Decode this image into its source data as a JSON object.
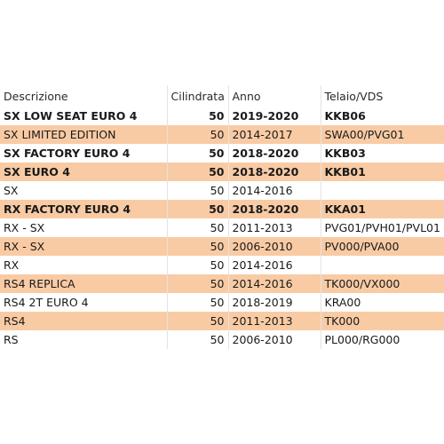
{
  "table": {
    "headers": [
      "Descrizione",
      "Cilindrata",
      "Anno",
      "Telaio/VDS"
    ],
    "rows": [
      {
        "descrizione": "SX LOW SEAT EURO 4",
        "cilindrata": "50",
        "anno": "2019-2020",
        "telaio": "KKB06",
        "bold": true,
        "shaded": false
      },
      {
        "descrizione": "SX LIMITED EDITION",
        "cilindrata": "50",
        "anno": "2014-2017",
        "telaio": "SWA00/PVG01",
        "bold": false,
        "shaded": true
      },
      {
        "descrizione": "SX FACTORY EURO 4",
        "cilindrata": "50",
        "anno": "2018-2020",
        "telaio": "KKB03",
        "bold": true,
        "shaded": false
      },
      {
        "descrizione": "SX EURO 4",
        "cilindrata": "50",
        "anno": "2018-2020",
        "telaio": "KKB01",
        "bold": true,
        "shaded": true
      },
      {
        "descrizione": "SX",
        "cilindrata": "50",
        "anno": "2014-2016",
        "telaio": "",
        "bold": false,
        "shaded": false
      },
      {
        "descrizione": "RX FACTORY EURO 4",
        "cilindrata": "50",
        "anno": "2018-2020",
        "telaio": "KKA01",
        "bold": true,
        "shaded": true
      },
      {
        "descrizione": "RX - SX",
        "cilindrata": "50",
        "anno": "2011-2013",
        "telaio": "PVG01/PVH01/PVL01",
        "bold": false,
        "shaded": false
      },
      {
        "descrizione": "RX - SX",
        "cilindrata": "50",
        "anno": "2006-2010",
        "telaio": "PV000/PVA00",
        "bold": false,
        "shaded": true
      },
      {
        "descrizione": "RX",
        "cilindrata": "50",
        "anno": "2014-2016",
        "telaio": "",
        "bold": false,
        "shaded": false
      },
      {
        "descrizione": "RS4 REPLICA",
        "cilindrata": "50",
        "anno": "2014-2016",
        "telaio": "TK000/VX000",
        "bold": false,
        "shaded": true
      },
      {
        "descrizione": "RS4 2T EURO 4",
        "cilindrata": "50",
        "anno": "2018-2019",
        "telaio": "KRA00",
        "bold": false,
        "shaded": false
      },
      {
        "descrizione": "RS4",
        "cilindrata": "50",
        "anno": "2011-2013",
        "telaio": "TK000",
        "bold": false,
        "shaded": true
      },
      {
        "descrizione": "RS",
        "cilindrata": "50",
        "anno": "2006-2010",
        "telaio": "PL000/RG000",
        "bold": false,
        "shaded": false
      }
    ]
  }
}
